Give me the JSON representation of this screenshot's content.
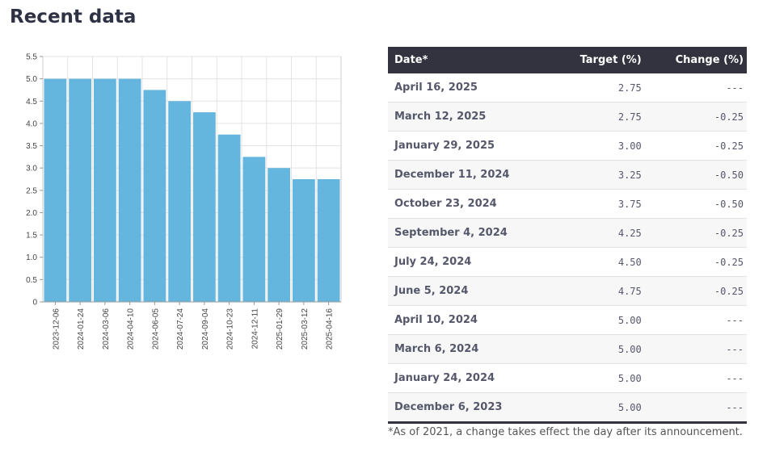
{
  "heading": "Recent data",
  "chart_data": {
    "type": "bar",
    "categories": [
      "2023-12-06",
      "2024-01-24",
      "2024-03-06",
      "2024-04-10",
      "2024-06-05",
      "2024-07-24",
      "2024-09-04",
      "2024-10-23",
      "2024-12-11",
      "2025-01-29",
      "2025-03-12",
      "2025-04-16"
    ],
    "values": [
      5.0,
      5.0,
      5.0,
      5.0,
      4.75,
      4.5,
      4.25,
      3.75,
      3.25,
      3.0,
      2.75,
      2.75
    ],
    "yticks": [
      "0",
      "0.5",
      "1.0",
      "1.5",
      "2.0",
      "2.5",
      "3.0",
      "3.5",
      "4.0",
      "4.5",
      "5.0",
      "5.5"
    ],
    "ylim": [
      0,
      5.5
    ],
    "title": "",
    "xlabel": "",
    "ylabel": "",
    "bar_color": "#65b6de",
    "grid": true
  },
  "table": {
    "headers": {
      "date": "Date*",
      "target": "Target (%)",
      "change": "Change (%)"
    },
    "rows": [
      {
        "date": "April 16, 2025",
        "target": "2.75",
        "change": "---"
      },
      {
        "date": "March 12, 2025",
        "target": "2.75",
        "change": "-0.25"
      },
      {
        "date": "January 29, 2025",
        "target": "3.00",
        "change": "-0.25"
      },
      {
        "date": "December 11, 2024",
        "target": "3.25",
        "change": "-0.50"
      },
      {
        "date": "October 23, 2024",
        "target": "3.75",
        "change": "-0.50"
      },
      {
        "date": "September 4, 2024",
        "target": "4.25",
        "change": "-0.25"
      },
      {
        "date": "July 24, 2024",
        "target": "4.50",
        "change": "-0.25"
      },
      {
        "date": "June 5, 2024",
        "target": "4.75",
        "change": "-0.25"
      },
      {
        "date": "April 10, 2024",
        "target": "5.00",
        "change": "---"
      },
      {
        "date": "March 6, 2024",
        "target": "5.00",
        "change": "---"
      },
      {
        "date": "January 24, 2024",
        "target": "5.00",
        "change": "---"
      },
      {
        "date": "December 6, 2023",
        "target": "5.00",
        "change": "---"
      }
    ]
  },
  "footnote": "*As of 2021, a change takes effect the day after its announcement."
}
